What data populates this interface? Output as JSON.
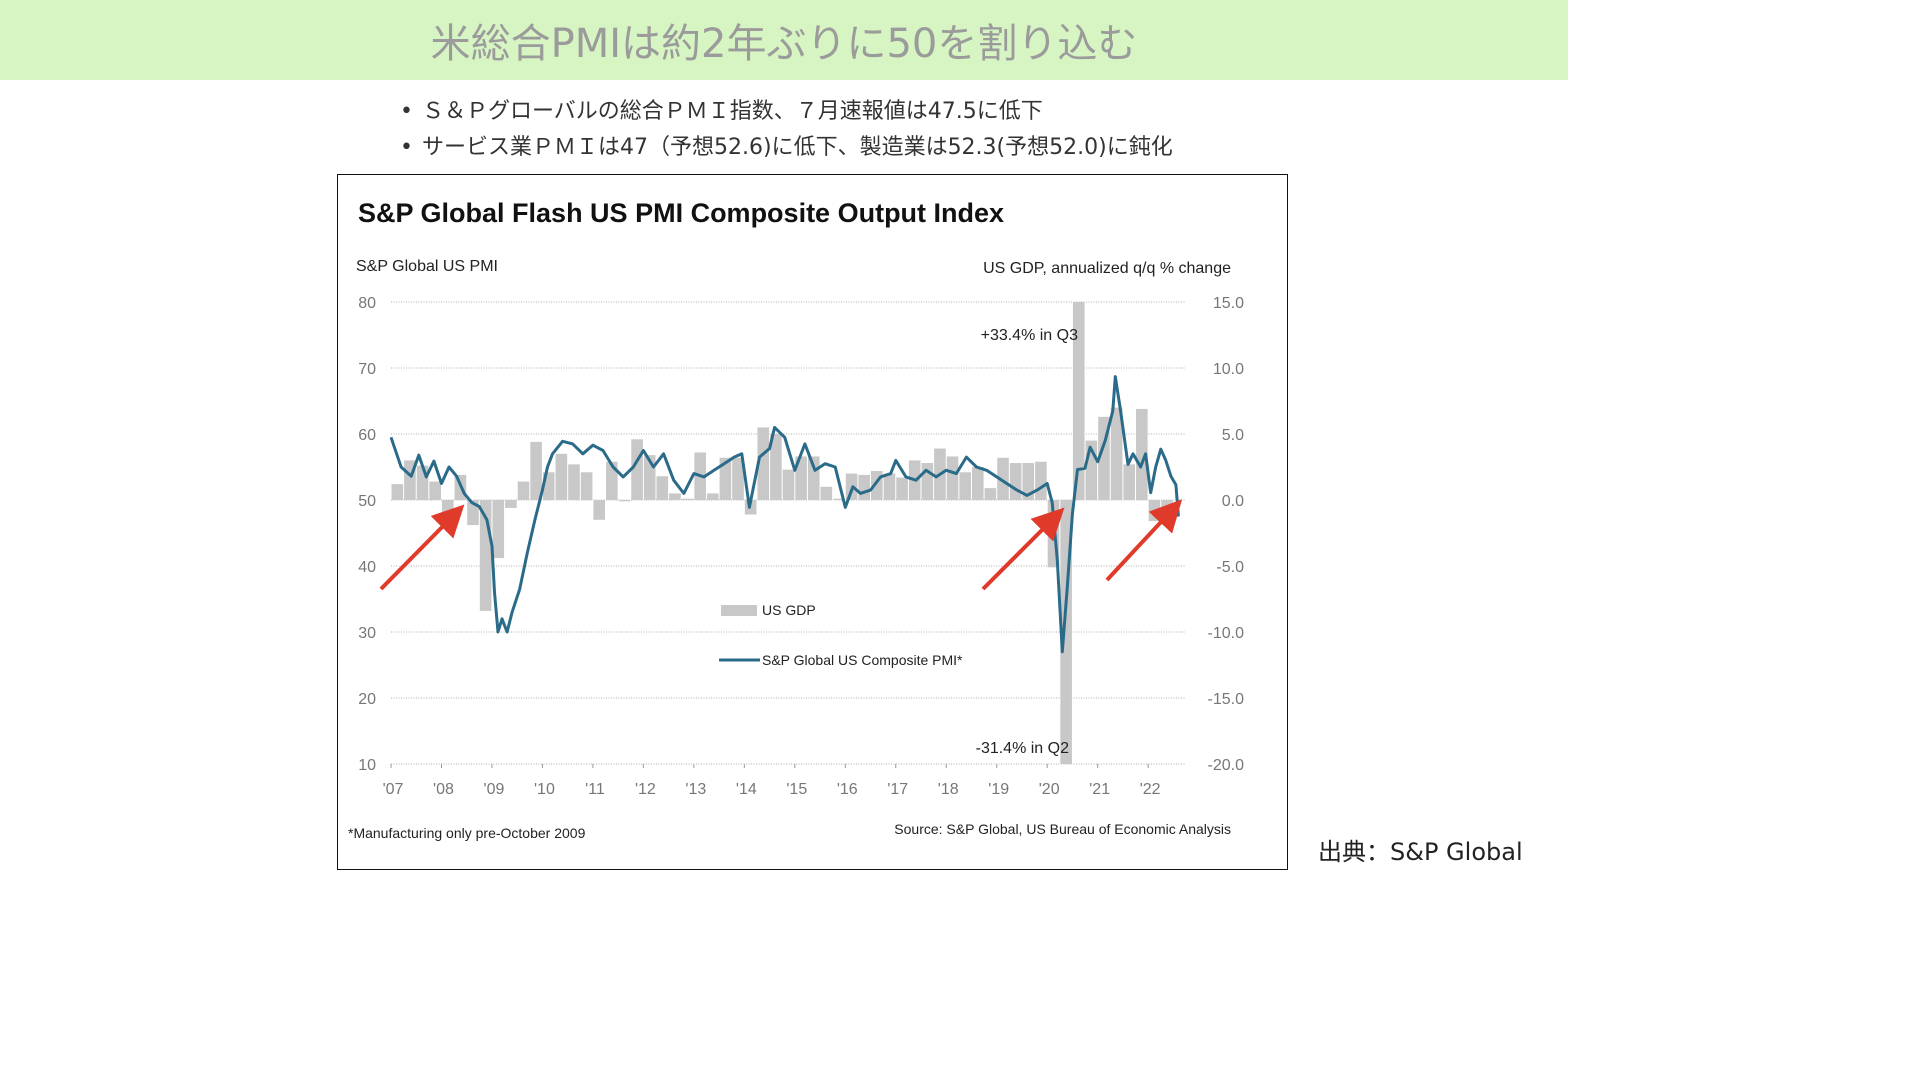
{
  "slide": {
    "title": "米総合PMIは約2年ぶりに50を割り込む",
    "bullets": [
      "Ｓ＆Ｐグローバルの総合ＰＭＩ指数、７月速報値は47.5に低下",
      "サービス業ＰＭＩは47（予想52.6)に低下、製造業は52.3(予想52.0)に鈍化"
    ],
    "source_credit": "出典：S&P Global"
  },
  "colors": {
    "title_bg": "#d6f5c3",
    "title_text": "#9b9b9b",
    "pmi_line": "#2a6b8a",
    "gdp_bar": "#c8c8c8",
    "arrow": "#e03a2b"
  },
  "chart_data": {
    "type": "bar+line",
    "title": "S&P Global Flash US PMI Composite Output Index",
    "left_axis_label": "S&P Global US PMI",
    "right_axis_label": "US GDP, annualized q/q % change",
    "left_ylim": [
      10,
      80
    ],
    "left_ticks": [
      "80",
      "70",
      "60",
      "50",
      "40",
      "30",
      "20",
      "10"
    ],
    "right_ylim": [
      -20,
      15
    ],
    "right_ticks": [
      "15.0",
      "10.0",
      "5.0",
      "0.0",
      "-5.0",
      "-10.0",
      "-15.0",
      "-20.0"
    ],
    "x_ticks": [
      "'07",
      "'08",
      "'09",
      "'10",
      "'11",
      "'12",
      "'13",
      "'14",
      "'15",
      "'16",
      "'17",
      "'18",
      "'19",
      "'20",
      "'21",
      "'22"
    ],
    "x_start_year": 2007,
    "grid": true,
    "legend_gdp": "US GDP",
    "legend_pmi": "S&P Global US Composite PMI*",
    "annotation_top": "+33.4% in Q3",
    "annotation_bottom": "-31.4% in Q2",
    "footnote": "*Manufacturing only pre-October 2009",
    "source": "Source: S&P Global, US Bureau of Economic Analysis",
    "gdp": {
      "name": "US GDP",
      "quarters": [
        "2007Q1",
        "2007Q2",
        "2007Q3",
        "2007Q4",
        "2008Q1",
        "2008Q2",
        "2008Q3",
        "2008Q4",
        "2009Q1",
        "2009Q2",
        "2009Q3",
        "2009Q4",
        "2010Q1",
        "2010Q2",
        "2010Q3",
        "2010Q4",
        "2011Q1",
        "2011Q2",
        "2011Q3",
        "2011Q4",
        "2012Q1",
        "2012Q2",
        "2012Q3",
        "2012Q4",
        "2013Q1",
        "2013Q2",
        "2013Q3",
        "2013Q4",
        "2014Q1",
        "2014Q2",
        "2014Q3",
        "2014Q4",
        "2015Q1",
        "2015Q2",
        "2015Q3",
        "2015Q4",
        "2016Q1",
        "2016Q2",
        "2016Q3",
        "2016Q4",
        "2017Q1",
        "2017Q2",
        "2017Q3",
        "2017Q4",
        "2018Q1",
        "2018Q2",
        "2018Q3",
        "2018Q4",
        "2019Q1",
        "2019Q2",
        "2019Q3",
        "2019Q4",
        "2020Q1",
        "2020Q2",
        "2020Q3",
        "2020Q4",
        "2021Q1",
        "2021Q2",
        "2021Q3",
        "2021Q4",
        "2022Q1",
        "2022Q2"
      ],
      "values": [
        1.2,
        3.0,
        2.6,
        1.4,
        -1.6,
        1.9,
        -1.9,
        -8.4,
        -4.4,
        -0.6,
        1.4,
        4.4,
        2.1,
        3.5,
        2.7,
        2.1,
        -1.5,
        2.9,
        -0.1,
        4.6,
        3.4,
        1.8,
        0.5,
        0.1,
        3.6,
        0.5,
        3.2,
        3.2,
        -1.1,
        5.5,
        5.0,
        2.3,
        3.3,
        3.3,
        1.0,
        0.1,
        2.0,
        1.9,
        2.2,
        2.0,
        1.7,
        3.0,
        2.8,
        3.9,
        3.3,
        2.1,
        2.5,
        0.9,
        3.2,
        2.8,
        2.8,
        2.9,
        -5.1,
        -31.4,
        33.4,
        4.5,
        6.3,
        7.0,
        2.7,
        6.9,
        -1.6,
        -0.9
      ]
    },
    "pmi": {
      "name": "S&P Global US Composite PMI*",
      "points": [
        [
          2007.0,
          59.5
        ],
        [
          2007.2,
          55.0
        ],
        [
          2007.4,
          53.6
        ],
        [
          2007.55,
          56.8
        ],
        [
          2007.7,
          53.5
        ],
        [
          2007.85,
          55.9
        ],
        [
          2008.0,
          52.5
        ],
        [
          2008.15,
          55.0
        ],
        [
          2008.3,
          53.6
        ],
        [
          2008.45,
          51.0
        ],
        [
          2008.6,
          49.6
        ],
        [
          2008.75,
          49.0
        ],
        [
          2008.9,
          47.0
        ],
        [
          2009.0,
          43.0
        ],
        [
          2009.05,
          36.0
        ],
        [
          2009.12,
          30.0
        ],
        [
          2009.2,
          32.0
        ],
        [
          2009.3,
          30.0
        ],
        [
          2009.4,
          33.0
        ],
        [
          2009.55,
          36.5
        ],
        [
          2009.7,
          42.0
        ],
        [
          2009.85,
          47.0
        ],
        [
          2010.0,
          51.5
        ],
        [
          2010.1,
          55.0
        ],
        [
          2010.2,
          57.0
        ],
        [
          2010.4,
          58.9
        ],
        [
          2010.6,
          58.5
        ],
        [
          2010.8,
          57.0
        ],
        [
          2011.0,
          58.3
        ],
        [
          2011.2,
          57.5
        ],
        [
          2011.4,
          55.0
        ],
        [
          2011.6,
          53.5
        ],
        [
          2011.8,
          55.0
        ],
        [
          2012.0,
          57.5
        ],
        [
          2012.2,
          55.0
        ],
        [
          2012.4,
          57.0
        ],
        [
          2012.6,
          53.0
        ],
        [
          2012.8,
          51.0
        ],
        [
          2013.0,
          54.0
        ],
        [
          2013.2,
          53.5
        ],
        [
          2013.4,
          54.5
        ],
        [
          2013.6,
          55.5
        ],
        [
          2013.8,
          56.5
        ],
        [
          2013.95,
          57.0
        ],
        [
          2014.1,
          48.9
        ],
        [
          2014.3,
          56.5
        ],
        [
          2014.5,
          57.8
        ],
        [
          2014.6,
          61.0
        ],
        [
          2014.8,
          59.5
        ],
        [
          2015.0,
          54.5
        ],
        [
          2015.2,
          58.5
        ],
        [
          2015.4,
          54.5
        ],
        [
          2015.6,
          55.5
        ],
        [
          2015.8,
          55.0
        ],
        [
          2016.0,
          48.9
        ],
        [
          2016.15,
          52.0
        ],
        [
          2016.3,
          51.0
        ],
        [
          2016.5,
          51.5
        ],
        [
          2016.7,
          53.5
        ],
        [
          2016.9,
          54.0
        ],
        [
          2017.0,
          56.0
        ],
        [
          2017.2,
          53.5
        ],
        [
          2017.4,
          53.0
        ],
        [
          2017.6,
          54.5
        ],
        [
          2017.8,
          53.5
        ],
        [
          2018.0,
          54.5
        ],
        [
          2018.2,
          54.0
        ],
        [
          2018.4,
          56.5
        ],
        [
          2018.6,
          55.0
        ],
        [
          2018.8,
          54.5
        ],
        [
          2019.0,
          53.5
        ],
        [
          2019.2,
          52.5
        ],
        [
          2019.4,
          51.5
        ],
        [
          2019.6,
          50.7
        ],
        [
          2019.8,
          51.5
        ],
        [
          2020.0,
          52.5
        ],
        [
          2020.1,
          49.6
        ],
        [
          2020.2,
          40.9
        ],
        [
          2020.3,
          27.0
        ],
        [
          2020.4,
          37.0
        ],
        [
          2020.5,
          47.9
        ],
        [
          2020.6,
          54.6
        ],
        [
          2020.75,
          54.8
        ],
        [
          2020.85,
          58.0
        ],
        [
          2021.0,
          55.8
        ],
        [
          2021.15,
          59.0
        ],
        [
          2021.3,
          63.5
        ],
        [
          2021.35,
          68.7
        ],
        [
          2021.45,
          63.7
        ],
        [
          2021.6,
          55.4
        ],
        [
          2021.7,
          57.0
        ],
        [
          2021.85,
          55.0
        ],
        [
          2021.95,
          57.0
        ],
        [
          2022.05,
          51.1
        ],
        [
          2022.15,
          55.0
        ],
        [
          2022.25,
          57.7
        ],
        [
          2022.35,
          56.0
        ],
        [
          2022.45,
          53.6
        ],
        [
          2022.55,
          52.3
        ],
        [
          2022.6,
          47.5
        ]
      ]
    }
  }
}
